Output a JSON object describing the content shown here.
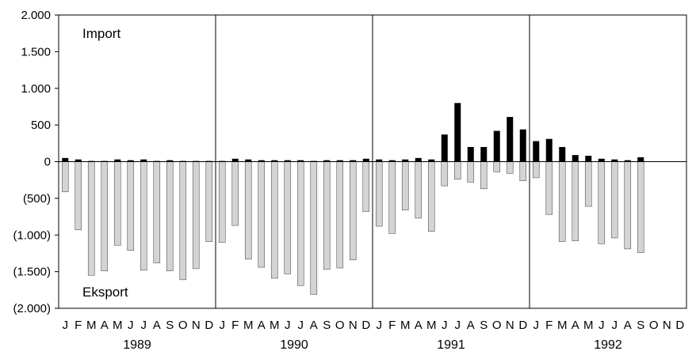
{
  "chart_data": {
    "type": "bar",
    "title": "",
    "xlabel": "",
    "ylabel": "",
    "ylim": [
      -2000,
      2000
    ],
    "yticks": [
      2000,
      1500,
      1000,
      500,
      0,
      -500,
      -1000,
      -1500,
      -2000
    ],
    "ytick_labels": [
      "2.000",
      "1.500",
      "1.000",
      "500",
      "0",
      "(500)",
      "(1.000)",
      "(1.500)",
      "(2.000)"
    ],
    "month_labels": [
      "J",
      "F",
      "M",
      "A",
      "M",
      "J",
      "J",
      "A",
      "S",
      "O",
      "N",
      "D"
    ],
    "years": [
      "1989",
      "1990",
      "1991",
      "1992"
    ],
    "annotations": {
      "top": "Import",
      "bottom": "Eksport"
    },
    "colors": {
      "import": "#000000",
      "export": "#d4d4d4",
      "export_stroke": "#555555"
    },
    "series": [
      {
        "name": "Import",
        "values": [
          50,
          30,
          10,
          10,
          30,
          20,
          30,
          10,
          20,
          10,
          10,
          10,
          10,
          40,
          30,
          20,
          20,
          20,
          20,
          10,
          20,
          20,
          20,
          40,
          30,
          20,
          30,
          50,
          30,
          370,
          800,
          200,
          200,
          420,
          610,
          440,
          280,
          310,
          200,
          90,
          80,
          40,
          30,
          20,
          60,
          null,
          null,
          null
        ]
      },
      {
        "name": "Eksport",
        "values": [
          -410,
          -930,
          -1550,
          -1490,
          -1140,
          -1210,
          -1480,
          -1380,
          -1490,
          -1610,
          -1460,
          -1090,
          -1100,
          -870,
          -1330,
          -1440,
          -1590,
          -1530,
          -1690,
          -1810,
          -1470,
          -1450,
          -1340,
          -680,
          -880,
          -980,
          -660,
          -770,
          -950,
          -330,
          -240,
          -280,
          -370,
          -140,
          -160,
          -260,
          -220,
          -720,
          -1090,
          -1080,
          -610,
          -1120,
          -1040,
          -1190,
          -1240,
          null,
          null,
          null
        ]
      }
    ]
  }
}
